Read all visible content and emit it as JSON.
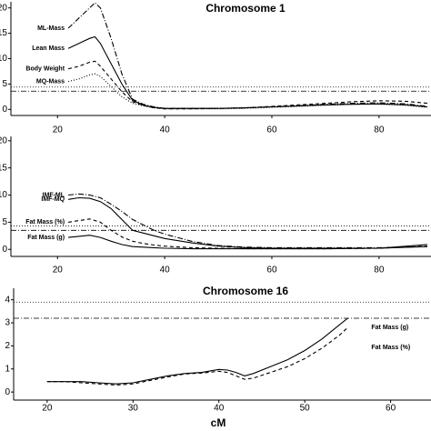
{
  "chart_data": [
    {
      "type": "line",
      "title": "Chromosome 1",
      "x": [
        22,
        24,
        26,
        27,
        28,
        30,
        32,
        34,
        36,
        38,
        40,
        45,
        50,
        55,
        60,
        65,
        70,
        75,
        80,
        85,
        89
      ],
      "series": [
        {
          "name": "ML-Mass",
          "color": "#000000",
          "dash": "dashdot",
          "values": [
            16,
            18,
            20,
            21,
            20,
            14,
            7,
            2,
            1,
            0.5,
            0.2,
            0.2,
            0.2,
            0.3,
            0.5,
            0.7,
            1,
            1.2,
            1.3,
            1.1,
            0.6
          ]
        },
        {
          "name": "Lean Mass",
          "color": "#000000",
          "dash": "solid",
          "values": [
            12,
            13,
            14,
            14.3,
            13,
            9,
            5,
            1.8,
            0.8,
            0.4,
            0.2,
            0.2,
            0.2,
            0.3,
            0.5,
            0.7,
            0.9,
            1,
            1.1,
            0.9,
            0.5
          ]
        },
        {
          "name": "Body Weight",
          "color": "#000000",
          "dash": "dashed",
          "values": [
            8,
            8.5,
            9.3,
            9.5,
            8.5,
            6,
            3.5,
            1.5,
            0.8,
            0.3,
            0.1,
            0.1,
            0.2,
            0.3,
            0.6,
            0.9,
            1.2,
            1.5,
            1.7,
            1.6,
            1.2
          ]
        },
        {
          "name": "MQ-Mass",
          "color": "#000000",
          "dash": "dotted",
          "values": [
            5.5,
            6,
            6.8,
            7,
            6.5,
            4.5,
            2.5,
            1.2,
            0.7,
            0.3,
            0.1,
            0.1,
            0.1,
            0.2,
            0.4,
            0.6,
            0.8,
            1,
            1,
            0.8,
            0.4
          ]
        }
      ],
      "thresholds": [
        {
          "value": 4.4,
          "dash": "dotted"
        },
        {
          "value": 3.6,
          "dash": "dashdot"
        }
      ],
      "label_side": "start",
      "xlim": [
        11.3,
        89.7
      ],
      "xticks": [
        20,
        40,
        60,
        80
      ],
      "ylim": [
        -1.2,
        21.2
      ],
      "yticks": [
        0,
        5,
        10,
        15,
        20
      ]
    },
    {
      "type": "line",
      "x": [
        22,
        24,
        26,
        28,
        30,
        32,
        34,
        36,
        38,
        40,
        45,
        50,
        55,
        60,
        70,
        80,
        89
      ],
      "series": [
        {
          "name": "IMF-ML",
          "color": "#000000",
          "dash": "dashdot",
          "values": [
            10,
            10.2,
            10,
            9.5,
            8.3,
            7,
            5.5,
            4.5,
            3.5,
            2.8,
            1.5,
            0.7,
            0.4,
            0.3,
            0.3,
            0.3,
            0.5
          ]
        },
        {
          "name": "IMF-MQ",
          "color": "#000000",
          "dash": "solid",
          "values": [
            9.2,
            9.5,
            9.4,
            8.8,
            7.5,
            5.5,
            3.5,
            3,
            2.5,
            2,
            1.2,
            0.6,
            0.3,
            0.2,
            0.2,
            0.2,
            0.5
          ]
        },
        {
          "name": "Fat Mass (%)",
          "color": "#000000",
          "dash": "dashed",
          "values": [
            5,
            5.3,
            5.6,
            5,
            3.5,
            2.3,
            1.5,
            1.1,
            0.8,
            0.6,
            0.3,
            0.2,
            0.1,
            0.1,
            0.1,
            0.2,
            0.6
          ]
        },
        {
          "name": "Fat Mass (g)",
          "color": "#000000",
          "dash": "solid",
          "values": [
            2.2,
            2.4,
            2.6,
            2.2,
            1.5,
            0.9,
            0.5,
            0.4,
            0.3,
            0.2,
            0.1,
            0.1,
            0.1,
            0.1,
            0.1,
            0.2,
            0.9
          ]
        }
      ],
      "thresholds": [
        {
          "value": 4.3,
          "dash": "dotted"
        },
        {
          "value": 3.5,
          "dash": "dashdot"
        }
      ],
      "label_side": "start",
      "xlim": [
        11.3,
        89.7
      ],
      "xticks": [
        20,
        40,
        60,
        80
      ],
      "ylim": [
        -1.3,
        20.8
      ],
      "yticks": [
        0,
        5,
        10,
        15,
        20
      ]
    },
    {
      "type": "line",
      "title": "Chromosome 16",
      "x_label": "cM",
      "x": [
        20,
        22,
        24,
        26,
        28,
        30,
        32,
        34,
        36,
        38,
        40,
        41,
        42,
        43,
        44,
        46,
        48,
        50,
        52,
        54,
        55
      ],
      "series": [
        {
          "name": "Fat Mass (g)",
          "color": "#000000",
          "dash": "solid",
          "values": [
            0.45,
            0.45,
            0.45,
            0.4,
            0.35,
            0.4,
            0.55,
            0.7,
            0.8,
            0.85,
            0.98,
            0.95,
            0.85,
            0.7,
            0.8,
            1.1,
            1.4,
            1.8,
            2.3,
            2.9,
            3.2
          ]
        },
        {
          "name": "Fat Mass (%)",
          "color": "#000000",
          "dash": "dashed",
          "values": [
            0.45,
            0.45,
            0.4,
            0.35,
            0.3,
            0.35,
            0.5,
            0.65,
            0.78,
            0.82,
            0.9,
            0.85,
            0.7,
            0.55,
            0.6,
            0.85,
            1.1,
            1.45,
            1.9,
            2.45,
            2.8
          ]
        }
      ],
      "thresholds": [
        {
          "value": 3.9,
          "dash": "dotted"
        },
        {
          "value": 3.2,
          "dash": "dashdot"
        }
      ],
      "label_side": "end",
      "xlim": [
        16.1,
        64.7
      ],
      "xticks": [
        20,
        30,
        40,
        50,
        60
      ],
      "ylim": [
        -0.35,
        4.5
      ],
      "yticks": [
        0,
        1,
        2,
        3,
        4
      ]
    }
  ]
}
